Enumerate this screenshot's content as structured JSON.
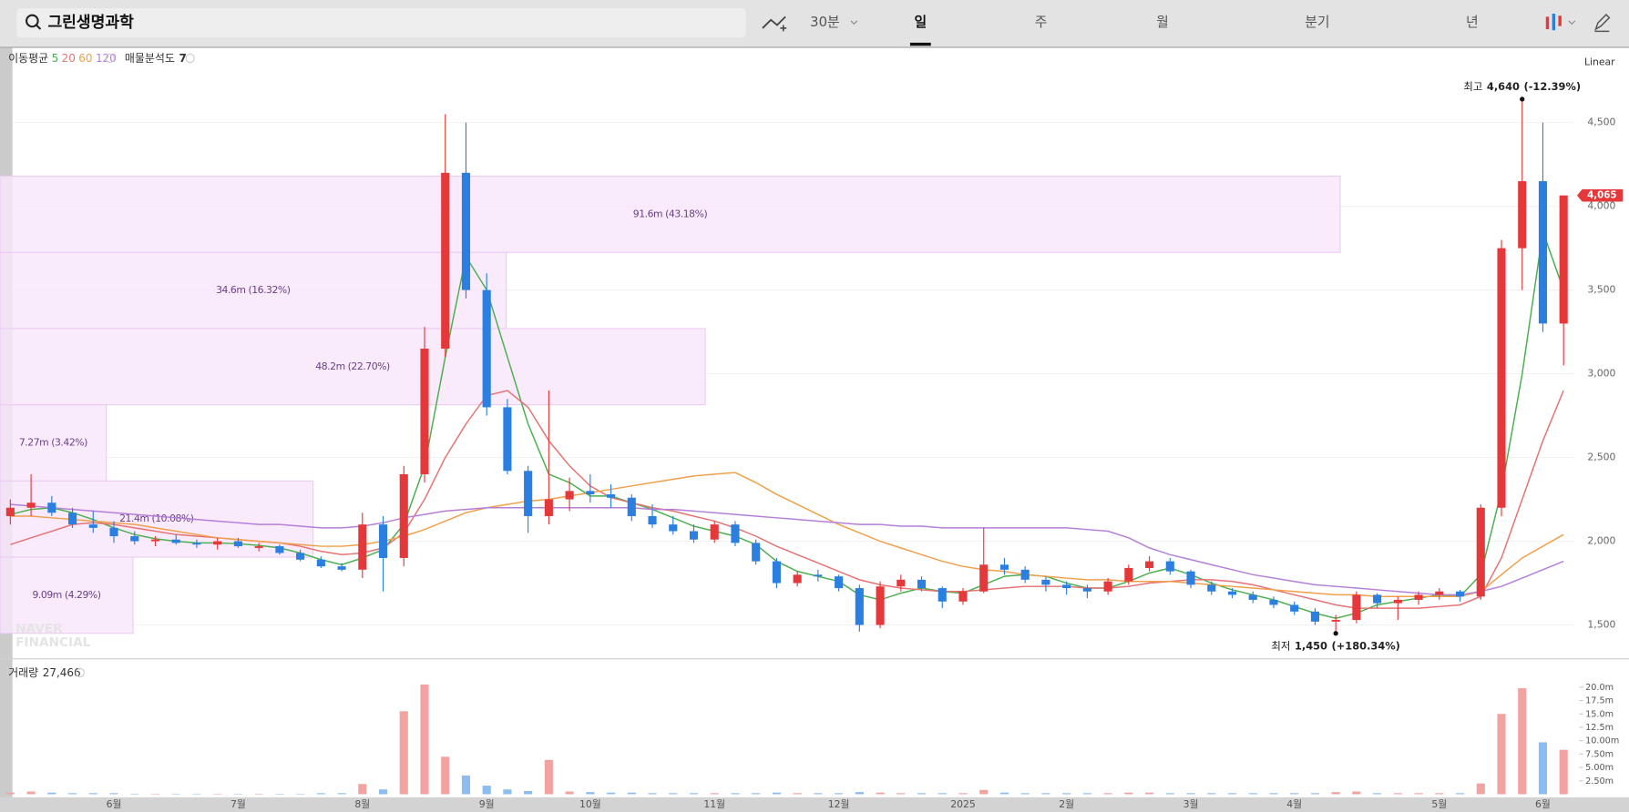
{
  "header": {
    "search": "그린생명과학",
    "tabs": [
      {
        "label": "30분"
      },
      {
        "label": "일",
        "selected": true
      },
      {
        "label": "주"
      },
      {
        "label": "월"
      },
      {
        "label": "분기"
      },
      {
        "label": "년"
      }
    ]
  },
  "chart_data": {
    "type": "candlestick",
    "categories": [
      null,
      null,
      null,
      null,
      null,
      "6월",
      null,
      null,
      null,
      null,
      null,
      "7월",
      null,
      null,
      null,
      null,
      null,
      "8월",
      null,
      null,
      null,
      null,
      null,
      "9월",
      null,
      null,
      null,
      null,
      "10월",
      null,
      null,
      null,
      null,
      null,
      "11월",
      null,
      null,
      null,
      null,
      null,
      "12월",
      null,
      null,
      null,
      null,
      null,
      "2025",
      null,
      null,
      null,
      null,
      "2월",
      null,
      null,
      null,
      null,
      null,
      "3월",
      null,
      null,
      null,
      null,
      "4월",
      null,
      null,
      null,
      null,
      null,
      null,
      "5월",
      null,
      null,
      null,
      null,
      "6월",
      null
    ],
    "open": [
      2150,
      2200,
      2230,
      2170,
      2100,
      2080,
      2030,
      2000,
      2010,
      1990,
      1980,
      2000,
      1960,
      1970,
      1930,
      1890,
      1850,
      1830,
      2100,
      1900,
      2400,
      3150,
      4200,
      3500,
      2800,
      2420,
      2150,
      2250,
      2300,
      2280,
      2260,
      2150,
      2100,
      2060,
      2010,
      2100,
      1990,
      1880,
      1750,
      1800,
      1790,
      1720,
      1500,
      1730,
      1770,
      1720,
      1640,
      1700,
      1860,
      1830,
      1770,
      1740,
      1720,
      1700,
      1760,
      1840,
      1880,
      1820,
      1740,
      1700,
      1680,
      1650,
      1620,
      1580,
      1520,
      1530,
      1680,
      1630,
      1650,
      1680,
      1700,
      1670,
      2200,
      3750,
      4150,
      3300
    ],
    "high": [
      2250,
      2400,
      2270,
      2200,
      2180,
      2120,
      2060,
      2030,
      2040,
      2010,
      2020,
      2020,
      1990,
      1980,
      1950,
      1910,
      1870,
      2170,
      2150,
      2450,
      3280,
      4550,
      4500,
      3600,
      2850,
      2450,
      2900,
      2380,
      2400,
      2340,
      2280,
      2220,
      2150,
      2100,
      2120,
      2120,
      2010,
      1900,
      1820,
      1830,
      1800,
      1740,
      1760,
      1800,
      1790,
      1730,
      1720,
      2080,
      1900,
      1850,
      1790,
      1760,
      1740,
      1780,
      1860,
      1910,
      1900,
      1830,
      1760,
      1720,
      1700,
      1670,
      1640,
      1600,
      1560,
      1700,
      1690,
      1670,
      1700,
      1720,
      1710,
      2220,
      3800,
      4640,
      4500,
      4065
    ],
    "low": [
      2100,
      2150,
      2150,
      2080,
      2050,
      1990,
      1980,
      1970,
      1980,
      1960,
      1950,
      1960,
      1940,
      1920,
      1880,
      1840,
      1820,
      1780,
      1700,
      1850,
      2350,
      3100,
      3450,
      2750,
      2400,
      2050,
      2100,
      2180,
      2230,
      2200,
      2120,
      2080,
      2040,
      1990,
      1990,
      1970,
      1860,
      1720,
      1730,
      1760,
      1700,
      1460,
      1480,
      1700,
      1700,
      1600,
      1620,
      1690,
      1800,
      1750,
      1700,
      1680,
      1660,
      1680,
      1740,
      1820,
      1800,
      1720,
      1680,
      1660,
      1630,
      1600,
      1560,
      1500,
      1450,
      1510,
      1600,
      1530,
      1620,
      1650,
      1640,
      1650,
      2150,
      3500,
      3250,
      3050
    ],
    "close": [
      2200,
      2230,
      2170,
      2100,
      2080,
      2030,
      2000,
      2010,
      1990,
      1980,
      2000,
      1970,
      1970,
      1930,
      1890,
      1850,
      1830,
      2100,
      1900,
      2400,
      3150,
      4200,
      3500,
      2800,
      2420,
      2150,
      2250,
      2300,
      2280,
      2260,
      2150,
      2100,
      2060,
      2010,
      2100,
      1990,
      1880,
      1750,
      1800,
      1790,
      1720,
      1500,
      1730,
      1770,
      1720,
      1640,
      1700,
      1860,
      1830,
      1770,
      1740,
      1720,
      1700,
      1760,
      1840,
      1880,
      1820,
      1740,
      1700,
      1680,
      1650,
      1620,
      1580,
      1520,
      1530,
      1680,
      1630,
      1650,
      1680,
      1700,
      1670,
      2200,
      3750,
      4150,
      3300,
      4065
    ],
    "up_color": "#e5383b",
    "down_color": "#2a7fe0",
    "ylim": [
      1295,
      4940
    ],
    "yticks": [
      {
        "value": 1500,
        "label": "1,500"
      },
      {
        "value": 2000,
        "label": "2,000"
      },
      {
        "value": 2500,
        "label": "2,500"
      },
      {
        "value": 3000,
        "label": "3,000"
      },
      {
        "value": 3500,
        "label": "3,500"
      },
      {
        "value": 4000,
        "label": "4,000"
      },
      {
        "value": 4500,
        "label": "4,500"
      }
    ],
    "grid": true,
    "scale_label": "Linear",
    "current_price": {
      "value": 4065,
      "label": "4,065"
    },
    "moving_average": {
      "title": "이동평균",
      "series": [
        {
          "name": "5",
          "color": "#4caf50",
          "values": [
            2160,
            2190,
            2200,
            2170,
            2130,
            2080,
            2040,
            2015,
            2000,
            1990,
            1990,
            1985,
            1975,
            1960,
            1930,
            1890,
            1860,
            1900,
            1950,
            2100,
            2450,
            3100,
            3700,
            3500,
            3100,
            2700,
            2400,
            2350,
            2270,
            2270,
            2230,
            2190,
            2140,
            2090,
            2060,
            2030,
            1980,
            1880,
            1820,
            1790,
            1760,
            1680,
            1650,
            1690,
            1720,
            1700,
            1690,
            1740,
            1790,
            1800,
            1790,
            1750,
            1720,
            1720,
            1760,
            1810,
            1840,
            1800,
            1750,
            1710,
            1680,
            1650,
            1610,
            1570,
            1540,
            1570,
            1620,
            1640,
            1660,
            1680,
            1670,
            1800,
            2300,
            3000,
            3850,
            3500
          ]
        },
        {
          "name": "20",
          "color": "#e57373",
          "values": [
            1980,
            2020,
            2060,
            2100,
            2110,
            2100,
            2080,
            2060,
            2040,
            2030,
            2020,
            2010,
            2000,
            1990,
            1970,
            1940,
            1920,
            1930,
            1960,
            2050,
            2250,
            2500,
            2700,
            2870,
            2900,
            2800,
            2600,
            2450,
            2330,
            2260,
            2230,
            2200,
            2180,
            2150,
            2120,
            2080,
            2030,
            1970,
            1920,
            1870,
            1820,
            1770,
            1740,
            1720,
            1710,
            1700,
            1700,
            1710,
            1720,
            1730,
            1730,
            1730,
            1720,
            1720,
            1730,
            1750,
            1760,
            1770,
            1770,
            1760,
            1740,
            1710,
            1680,
            1650,
            1620,
            1600,
            1600,
            1600,
            1600,
            1610,
            1620,
            1670,
            1900,
            2250,
            2600,
            2900
          ]
        },
        {
          "name": "60",
          "color": "#f0a04b",
          "values": [
            2150,
            2150,
            2140,
            2130,
            2120,
            2110,
            2100,
            2080,
            2060,
            2040,
            2020,
            2010,
            2000,
            1990,
            1980,
            1970,
            1970,
            1980,
            2000,
            2030,
            2070,
            2120,
            2170,
            2200,
            2220,
            2240,
            2250,
            2270,
            2290,
            2310,
            2330,
            2350,
            2370,
            2390,
            2400,
            2410,
            2350,
            2280,
            2220,
            2160,
            2100,
            2050,
            2000,
            1960,
            1920,
            1880,
            1850,
            1830,
            1820,
            1800,
            1790,
            1780,
            1770,
            1770,
            1760,
            1760,
            1760,
            1750,
            1740,
            1730,
            1720,
            1710,
            1700,
            1690,
            1680,
            1680,
            1670,
            1670,
            1670,
            1670,
            1670,
            1700,
            1800,
            1900,
            1970,
            2040
          ]
        },
        {
          "name": "120",
          "color": "#b57fd9",
          "values": [
            2220,
            2210,
            2200,
            2190,
            2180,
            2170,
            2160,
            2150,
            2140,
            2130,
            2120,
            2110,
            2100,
            2100,
            2090,
            2080,
            2080,
            2090,
            2110,
            2140,
            2160,
            2180,
            2190,
            2200,
            2200,
            2200,
            2200,
            2200,
            2200,
            2200,
            2200,
            2190,
            2190,
            2180,
            2170,
            2160,
            2150,
            2140,
            2130,
            2120,
            2110,
            2100,
            2100,
            2090,
            2090,
            2080,
            2080,
            2080,
            2080,
            2080,
            2080,
            2080,
            2070,
            2060,
            2020,
            1960,
            1920,
            1890,
            1860,
            1830,
            1800,
            1780,
            1760,
            1740,
            1730,
            1720,
            1710,
            1700,
            1690,
            1680,
            1680,
            1700,
            1730,
            1780,
            1830,
            1880
          ]
        }
      ]
    },
    "volume_profile": {
      "title": "매물분석도",
      "period": 7,
      "bins": [
        1450,
        1905,
        2360,
        2815,
        3270,
        3725,
        4180
      ],
      "values": [
        9.09,
        21.4,
        7.27,
        48.2,
        34.6,
        91.6
      ],
      "value_labels": [
        "9.09m (4.29%)",
        "21.4m (10.08%)",
        "7.27m (3.42%)",
        "48.2m (22.70%)",
        "34.6m (16.32%)",
        "91.6m (43.18%)"
      ],
      "color": "#f8e6fb",
      "border_color": "#ebcdf3",
      "label_color": "#6a3f86"
    },
    "annotations": {
      "high": {
        "prefix": "최고",
        "price": {
          "value": 4640,
          "label": "4,640"
        },
        "change": "(-12.39%)"
      },
      "low": {
        "prefix": "최저",
        "price": {
          "value": 1450,
          "label": "1,450"
        },
        "change": "(+180.34%)"
      }
    },
    "volume": {
      "title": "거래량",
      "current": "27,466",
      "values": [
        0.3,
        0.5,
        0.3,
        0.2,
        0.2,
        0.2,
        0.1,
        0.1,
        0.1,
        0.1,
        0.1,
        0.1,
        0.1,
        0.1,
        0.1,
        0.2,
        0.2,
        1.9,
        0.9,
        15.5,
        20.5,
        7.0,
        3.5,
        1.6,
        0.9,
        0.6,
        6.4,
        0.5,
        0.4,
        0.3,
        0.3,
        0.2,
        0.2,
        0.2,
        0.2,
        0.2,
        0.2,
        0.3,
        0.2,
        0.2,
        0.2,
        0.4,
        0.3,
        0.2,
        0.2,
        0.2,
        0.2,
        0.8,
        0.3,
        0.2,
        0.2,
        0.2,
        0.2,
        0.2,
        0.3,
        0.3,
        0.2,
        0.2,
        0.2,
        0.2,
        0.2,
        0.2,
        0.2,
        0.2,
        0.4,
        0.5,
        0.2,
        0.2,
        0.2,
        0.2,
        0.2,
        2.0,
        15.0,
        19.8,
        9.7,
        8.3
      ],
      "ylim": [
        0,
        22.3
      ],
      "yticks": [
        {
          "value": 2.5,
          "label": "2.50m"
        },
        {
          "value": 5,
          "label": "5.00m"
        },
        {
          "value": 7.5,
          "label": "7.50m"
        },
        {
          "value": 10,
          "label": "10.00m"
        },
        {
          "value": 12.5,
          "label": "12.5m"
        },
        {
          "value": 15,
          "label": "15.0m"
        },
        {
          "value": 17.5,
          "label": "17.5m"
        },
        {
          "value": 20,
          "label": "20.0m"
        }
      ],
      "up_color": "#f3a2a2",
      "down_color": "#8dbdf0"
    },
    "watermark": [
      "NAVER",
      "FINANCIAL"
    ]
  }
}
